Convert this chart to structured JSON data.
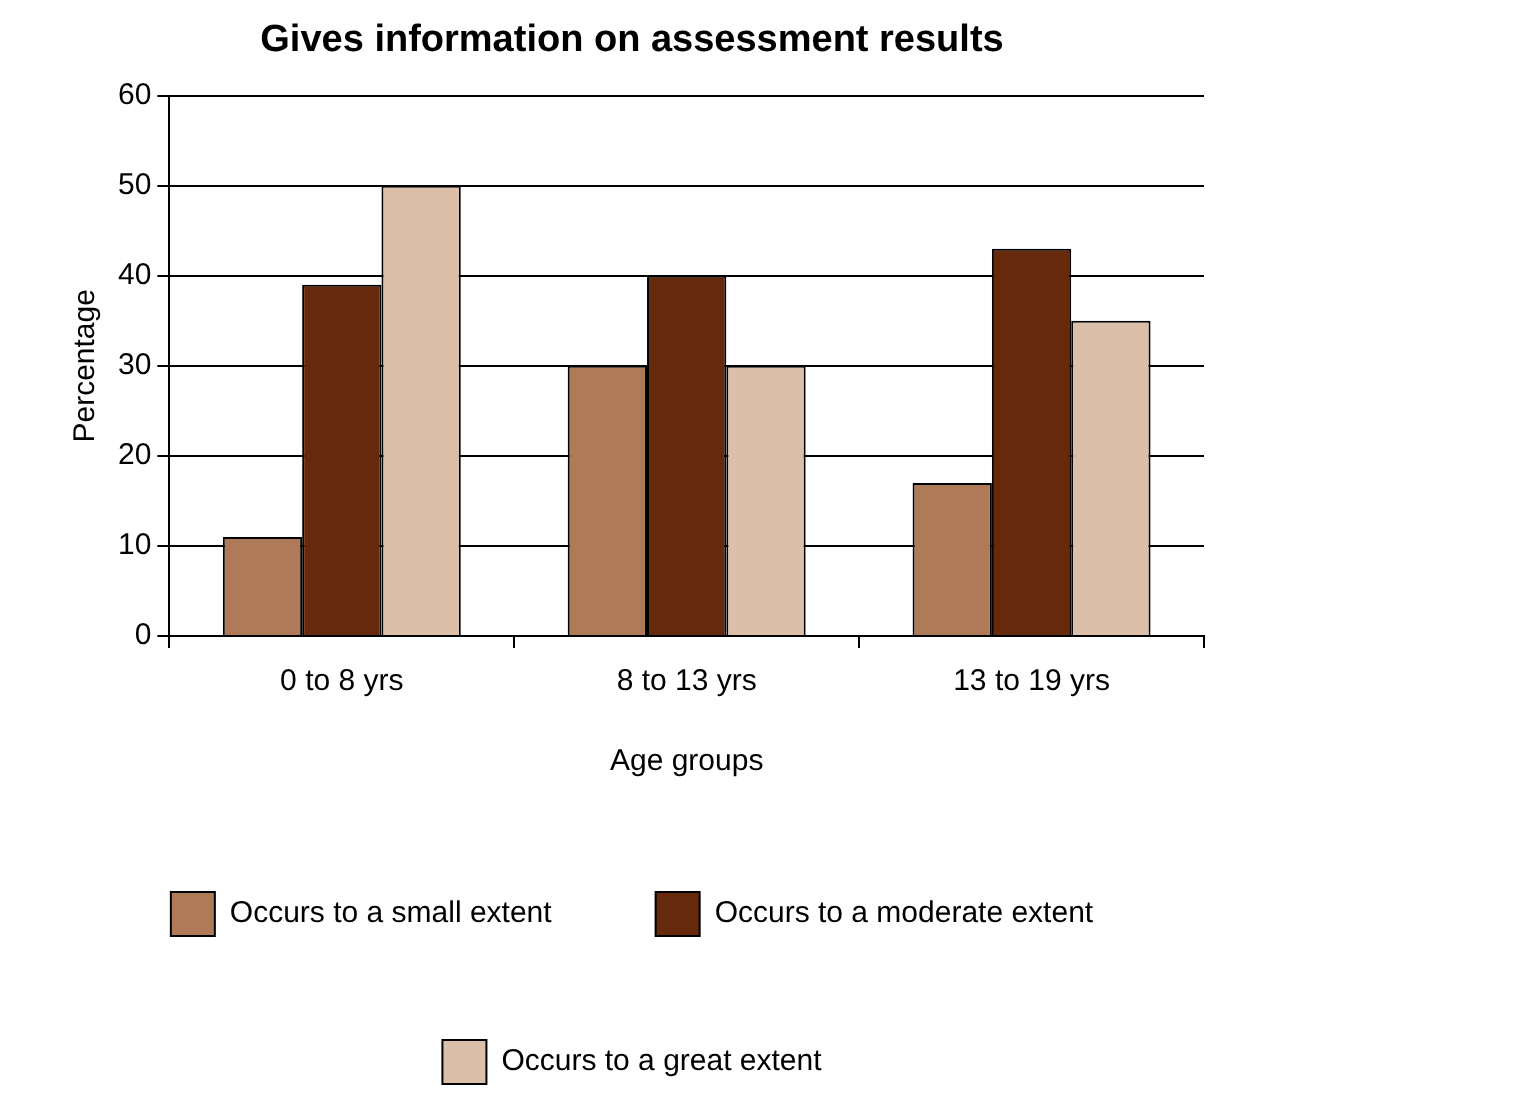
{
  "chart_data": {
    "type": "bar",
    "title": "Gives information on assessment results",
    "xlabel": "Age groups",
    "ylabel": "Percentage",
    "categories": [
      "0 to 8 yrs",
      "8 to 13 yrs",
      "13 to 19 yrs"
    ],
    "series": [
      {
        "name": "Occurs to a small extent",
        "color": "#ae7a58",
        "values": [
          11,
          30,
          17
        ]
      },
      {
        "name": "Occurs to a moderate extent",
        "color": "#66290c",
        "values": [
          39,
          40,
          43
        ]
      },
      {
        "name": "Occurs to a great extent",
        "color": "#dcbfa9",
        "values": [
          50,
          30,
          35
        ]
      }
    ],
    "ylim": [
      0,
      60
    ],
    "yticks": [
      0,
      10,
      20,
      30,
      40,
      50,
      60
    ],
    "grid": "y",
    "legend": "bottom"
  }
}
